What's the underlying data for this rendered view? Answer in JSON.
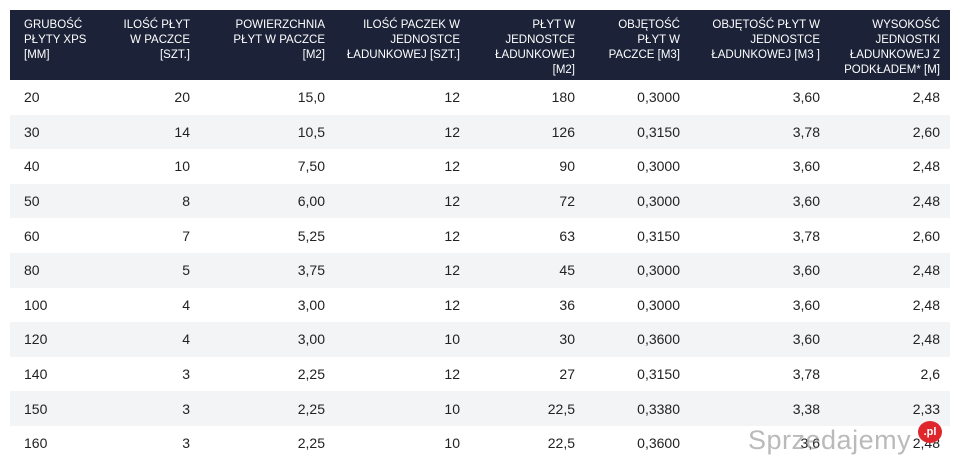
{
  "table": {
    "headers": [
      "GRUBOŚĆ PŁYTY XPS [MM]",
      "ILOŚĆ PŁYT W PACZCE [SZT.]",
      "POWIERZCHNIA PŁYT W PACZCE [M2]",
      "ILOŚĆ PACZEK W JEDNOSTCE ŁADUNKOWEJ [SZT.]",
      "PŁYT W JEDNOSTCE ŁADUNKOWEJ [M2]",
      "OBJĘTOŚĆ PŁYT W PACZCE [M3]",
      "OBJĘTOŚĆ PŁYT W JEDNOSTCE ŁADUNKOWEJ [M3 ]",
      "WYSOKOŚĆ JEDNOSTKI ŁADUNKOWEJ Z PODKŁADEM* [M]"
    ],
    "rows": [
      [
        "20",
        "20",
        "15,0",
        "12",
        "180",
        "0,3000",
        "3,60",
        "2,48"
      ],
      [
        "30",
        "14",
        "10,5",
        "12",
        "126",
        "0,3150",
        "3,78",
        "2,60"
      ],
      [
        "40",
        "10",
        "7,50",
        "12",
        "90",
        "0,3000",
        "3,60",
        "2,48"
      ],
      [
        "50",
        "8",
        "6,00",
        "12",
        "72",
        "0,3000",
        "3,60",
        "2,48"
      ],
      [
        "60",
        "7",
        "5,25",
        "12",
        "63",
        "0,3150",
        "3,78",
        "2,60"
      ],
      [
        "80",
        "5",
        "3,75",
        "12",
        "45",
        "0,3000",
        "3,60",
        "2,48"
      ],
      [
        "100",
        "4",
        "3,00",
        "12",
        "36",
        "0,3000",
        "3,60",
        "2,48"
      ],
      [
        "120",
        "4",
        "3,00",
        "10",
        "30",
        "0,3600",
        "3,60",
        "2,48"
      ],
      [
        "140",
        "3",
        "2,25",
        "12",
        "27",
        "0,3150",
        "3,78",
        "2,6"
      ],
      [
        "150",
        "3",
        "2,25",
        "10",
        "22,5",
        "0,3380",
        "3,38",
        "2,33"
      ],
      [
        "160",
        "3",
        "2,25",
        "10",
        "22,5",
        "0,3600",
        "3,6",
        "2,48"
      ]
    ]
  },
  "watermark": {
    "text": "Sprzedajemy",
    "badge": ".pl"
  }
}
